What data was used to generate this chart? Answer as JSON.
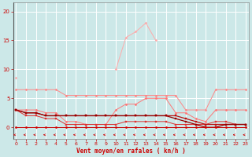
{
  "x": [
    0,
    1,
    2,
    3,
    4,
    5,
    6,
    7,
    8,
    9,
    10,
    11,
    12,
    13,
    14,
    15,
    16,
    17,
    18,
    19,
    20,
    21,
    22,
    23
  ],
  "series": [
    {
      "color": "#ffaaaa",
      "linewidth": 0.7,
      "marker": "D",
      "markersize": 1.5,
      "y": [
        8.5,
        null,
        null,
        null,
        null,
        null,
        null,
        null,
        null,
        null,
        10,
        15.5,
        16.5,
        18,
        15,
        null,
        null,
        null,
        null,
        null,
        null,
        null,
        null,
        null
      ]
    },
    {
      "color": "#ff8888",
      "linewidth": 0.7,
      "marker": "D",
      "markersize": 1.5,
      "y": [
        6.5,
        6.5,
        6.5,
        6.5,
        6.5,
        5.5,
        5.5,
        5.5,
        5.5,
        5.5,
        5.5,
        5.5,
        5.5,
        5.5,
        5.5,
        5.5,
        5.5,
        3.0,
        3.0,
        3.0,
        6.5,
        6.5,
        6.5,
        6.5
      ]
    },
    {
      "color": "#ff7777",
      "linewidth": 0.7,
      "marker": "D",
      "markersize": 1.5,
      "y": [
        3.0,
        3.0,
        3.0,
        2.5,
        2.5,
        1.0,
        1.0,
        0.5,
        0.5,
        0.5,
        3.0,
        4.0,
        4.0,
        5.0,
        5.0,
        5.0,
        2.5,
        2.5,
        1.5,
        1.0,
        3.0,
        3.0,
        3.0,
        3.0
      ]
    },
    {
      "color": "#dd3333",
      "linewidth": 0.7,
      "marker": "s",
      "markersize": 1.5,
      "y": [
        3.0,
        2.0,
        2.0,
        1.5,
        1.5,
        0.5,
        0.5,
        0.5,
        0.5,
        0.5,
        0.5,
        1.0,
        1.0,
        1.0,
        1.0,
        1.0,
        0.5,
        0.5,
        0.5,
        0.5,
        1.0,
        1.0,
        0.5,
        0.5
      ]
    },
    {
      "color": "#bb1111",
      "linewidth": 0.9,
      "marker": "s",
      "markersize": 1.5,
      "y": [
        3.0,
        2.5,
        2.5,
        2.0,
        2.0,
        2.0,
        2.0,
        2.0,
        2.0,
        2.0,
        2.0,
        2.0,
        2.0,
        2.0,
        2.0,
        2.0,
        2.0,
        1.5,
        1.0,
        0.5,
        0.5,
        0.5,
        0.5,
        0.5
      ]
    },
    {
      "color": "#990000",
      "linewidth": 0.9,
      "marker": "s",
      "markersize": 1.5,
      "y": [
        3.0,
        2.5,
        2.5,
        2.0,
        2.0,
        2.0,
        2.0,
        2.0,
        2.0,
        2.0,
        2.0,
        2.0,
        2.0,
        2.0,
        2.0,
        2.0,
        1.5,
        1.0,
        0.5,
        0.0,
        0.0,
        0.5,
        0.5,
        0.5
      ]
    },
    {
      "color": "#cc0000",
      "linewidth": 0.7,
      "marker": "D",
      "markersize": 1.5,
      "y": [
        0.0,
        0.0,
        0.0,
        0.0,
        0.0,
        0.0,
        0.0,
        0.0,
        0.0,
        0.0,
        0.0,
        0.0,
        0.0,
        0.0,
        0.0,
        0.0,
        0.0,
        0.0,
        0.0,
        0.0,
        0.0,
        0.0,
        0.0,
        0.0
      ]
    }
  ],
  "xlabel": "Vent moyen/en rafales ( kn/h )",
  "xlim": [
    -0.3,
    23.3
  ],
  "ylim": [
    -2.0,
    21.5
  ],
  "yticks": [
    0,
    5,
    10,
    15,
    20
  ],
  "xticks": [
    0,
    1,
    2,
    3,
    4,
    5,
    6,
    7,
    8,
    9,
    10,
    11,
    12,
    13,
    14,
    15,
    16,
    17,
    18,
    19,
    20,
    21,
    22,
    23
  ],
  "bg_color": "#cce8e8",
  "grid_color": "#ffffff",
  "tick_color": "#cc0000",
  "label_color": "#cc0000"
}
